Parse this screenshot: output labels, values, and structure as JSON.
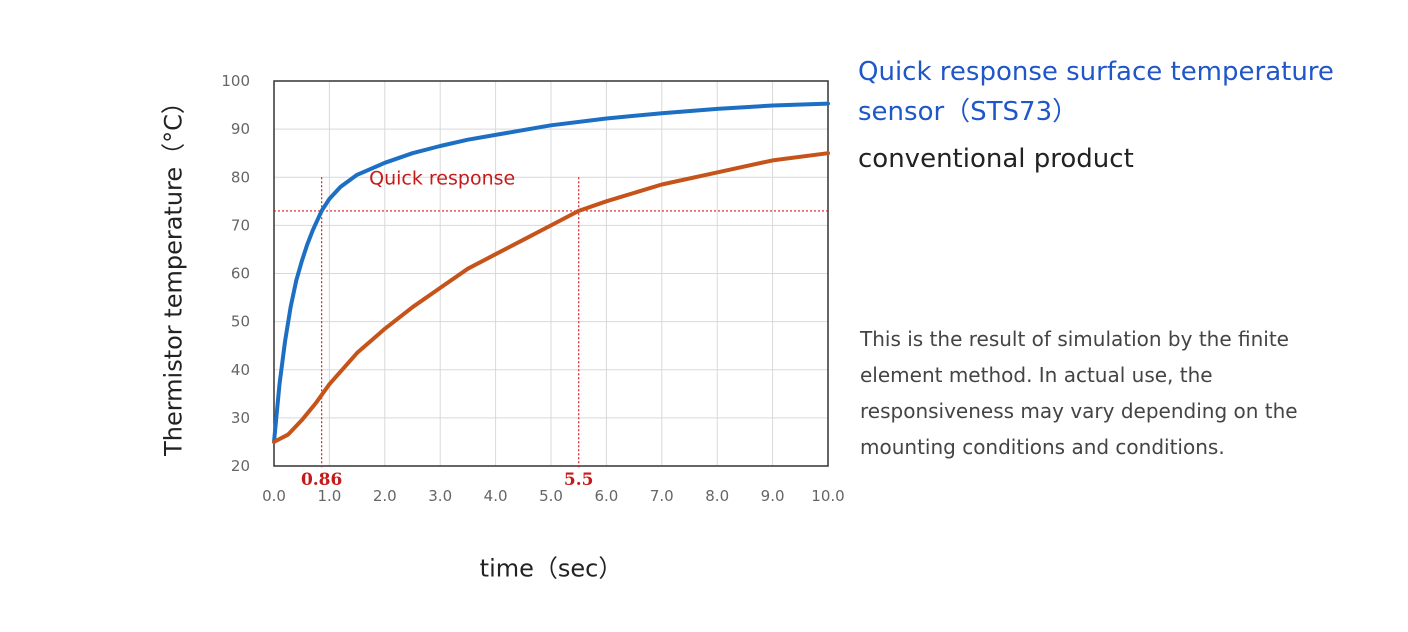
{
  "chart_data": {
    "type": "line",
    "xlabel": "time（sec）",
    "ylabel": "Thermistor temperature（°C）",
    "xlim": [
      0,
      10
    ],
    "ylim": [
      20,
      100
    ],
    "x_ticks": [
      "0.0",
      "1.0",
      "2.0",
      "3.0",
      "4.0",
      "5.0",
      "6.0",
      "7.0",
      "8.0",
      "9.0",
      "10.0"
    ],
    "y_ticks": [
      "20",
      "30",
      "40",
      "50",
      "60",
      "70",
      "80",
      "90",
      "100"
    ],
    "grid": true,
    "series": [
      {
        "name": "Quick response surface temperature sensor（STS73）",
        "color": "#1d6fc4",
        "x": [
          0,
          0.1,
          0.2,
          0.3,
          0.4,
          0.5,
          0.6,
          0.7,
          0.86,
          1.0,
          1.2,
          1.5,
          2.0,
          2.5,
          3.0,
          3.5,
          4.0,
          5.0,
          6.0,
          7.0,
          8.0,
          9.0,
          10.0
        ],
        "y": [
          25,
          37,
          46,
          53,
          58.5,
          62.5,
          66,
          69,
          73,
          75.5,
          78,
          80.5,
          83,
          85,
          86.5,
          87.8,
          88.8,
          90.8,
          92.2,
          93.3,
          94.2,
          94.9,
          95.3
        ]
      },
      {
        "name": "conventional product",
        "color": "#c5531a",
        "x": [
          0,
          0.25,
          0.5,
          0.75,
          1.0,
          1.5,
          2.0,
          2.5,
          3.0,
          3.5,
          4.0,
          4.5,
          5.0,
          5.5,
          6.0,
          7.0,
          8.0,
          9.0,
          10.0
        ],
        "y": [
          25,
          26.5,
          29.5,
          33,
          37,
          43.5,
          48.5,
          53,
          57,
          61,
          64,
          67,
          70,
          73,
          75,
          78.5,
          81,
          83.5,
          85
        ]
      }
    ],
    "threshold_y": 73,
    "markers": [
      {
        "x": 0.86,
        "label": "0.86"
      },
      {
        "x": 5.5,
        "label": "5.5"
      }
    ],
    "annotation": "Quick response"
  },
  "legend": {
    "blue": "Quick response surface temperature sensor（STS73）",
    "orange": "conventional product"
  },
  "note": "This is the result of simulation by the finite element method. In actual use, the responsiveness may vary depending on the mounting conditions and conditions.",
  "colors": {
    "blue": "#1d6fc4",
    "orange": "#c5531a",
    "guide": "#d41f1f"
  }
}
